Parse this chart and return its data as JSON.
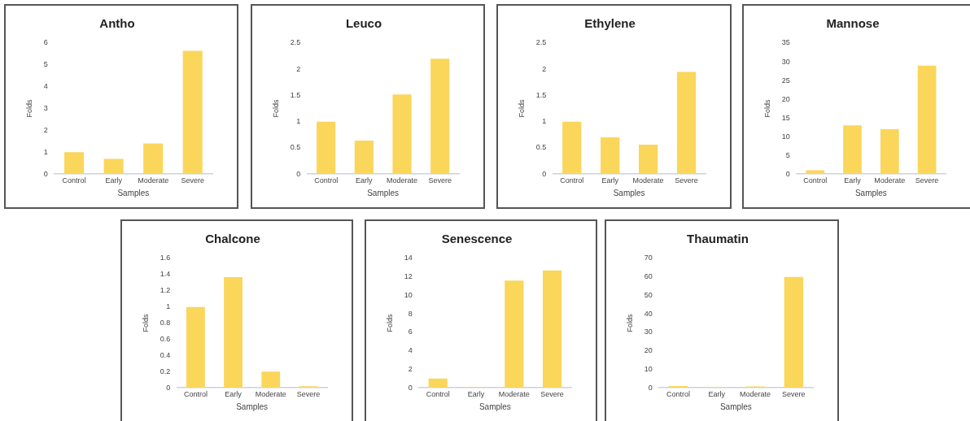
{
  "chart_data": [
    {
      "type": "bar",
      "title": "Antho",
      "xlabel": "Samples",
      "ylabel": "Folds",
      "categories": [
        "Control",
        "Early",
        "Moderate",
        "Severe"
      ],
      "values": [
        1,
        0.7,
        1.4,
        5.65
      ],
      "color": "#fad65a",
      "ylim": [
        0,
        6
      ],
      "yticks": [
        0,
        1,
        2,
        3,
        4,
        5,
        6
      ],
      "grid": false,
      "legend": false
    },
    {
      "type": "bar",
      "title": "Leuco",
      "xlabel": "Samples",
      "ylabel": "Folds",
      "categories": [
        "Control",
        "Early",
        "Moderate",
        "Severe"
      ],
      "values": [
        1,
        0.64,
        1.52,
        2.2
      ],
      "color": "#fad65a",
      "ylim": [
        0,
        2.5
      ],
      "yticks": [
        0,
        0.5,
        1,
        1.5,
        2,
        2.5
      ],
      "grid": false,
      "legend": false
    },
    {
      "type": "bar",
      "title": "Ethylene",
      "xlabel": "Samples",
      "ylabel": "Folds",
      "categories": [
        "Control",
        "Early",
        "Moderate",
        "Severe"
      ],
      "values": [
        1,
        0.7,
        0.56,
        1.95
      ],
      "color": "#fad65a",
      "ylim": [
        0,
        2.5
      ],
      "yticks": [
        0,
        0.5,
        1,
        1.5,
        2,
        2.5
      ],
      "grid": false,
      "legend": false
    },
    {
      "type": "bar",
      "title": "Mannose",
      "xlabel": "Samples",
      "ylabel": "Folds",
      "categories": [
        "Control",
        "Early",
        "Moderate",
        "Severe"
      ],
      "values": [
        1,
        13,
        12,
        29
      ],
      "color": "#fad65a",
      "ylim": [
        0,
        35
      ],
      "yticks": [
        0,
        5,
        10,
        15,
        20,
        25,
        30,
        35
      ],
      "grid": false,
      "legend": false
    },
    {
      "type": "bar",
      "title": "Chalcone",
      "xlabel": "Samples",
      "ylabel": "Folds",
      "categories": [
        "Control",
        "Early",
        "Moderate",
        "Severe"
      ],
      "values": [
        1,
        1.37,
        0.2,
        0.02
      ],
      "color": "#fad65a",
      "ylim": [
        0,
        1.6
      ],
      "yticks": [
        0,
        0.2,
        0.4,
        0.6,
        0.8,
        1,
        1.2,
        1.4,
        1.6
      ],
      "grid": false,
      "legend": false
    },
    {
      "type": "bar",
      "title": "Senescence",
      "xlabel": "Samples",
      "ylabel": "Folds",
      "categories": [
        "Control",
        "Early",
        "Moderate",
        "Severe"
      ],
      "values": [
        1,
        0.1,
        11.6,
        12.7
      ],
      "color": "#fad65a",
      "ylim": [
        0,
        14
      ],
      "yticks": [
        0,
        2,
        4,
        6,
        8,
        10,
        12,
        14
      ],
      "grid": false,
      "legend": false
    },
    {
      "type": "bar",
      "title": "Thaumatin",
      "xlabel": "Samples",
      "ylabel": "Folds",
      "categories": [
        "Control",
        "Early",
        "Moderate",
        "Severe"
      ],
      "values": [
        1,
        0.5,
        0.8,
        60
      ],
      "color": "#fad65a",
      "ylim": [
        0,
        70
      ],
      "yticks": [
        0,
        10,
        20,
        30,
        40,
        50,
        60,
        70
      ],
      "grid": false,
      "legend": false
    }
  ]
}
